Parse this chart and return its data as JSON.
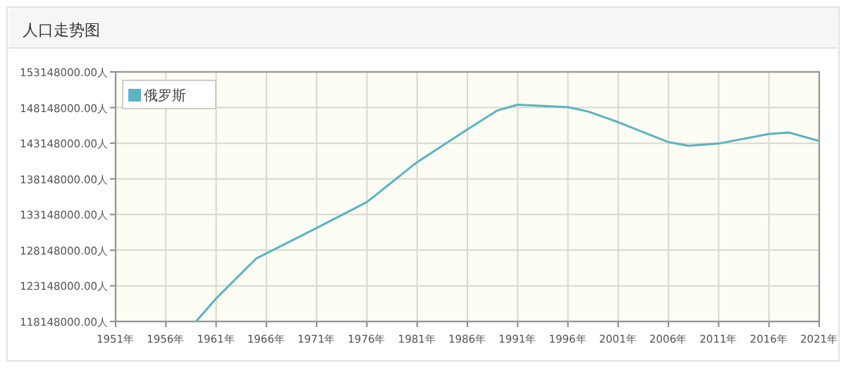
{
  "chart_data": {
    "type": "line",
    "title": "人口走势图",
    "x": [
      1959,
      1961,
      1965,
      1971,
      1976,
      1981,
      1986,
      1989,
      1991,
      1996,
      1998,
      2001,
      2006,
      2008,
      2011,
      2016,
      2018,
      2021
    ],
    "series": [
      {
        "name": "俄罗斯",
        "color": "#5ab4c2",
        "values": [
          118148000,
          121370000,
          126990000,
          131260000,
          134900000,
          140500000,
          145100000,
          147750000,
          148550000,
          148200000,
          147600000,
          146100000,
          143300000,
          142800000,
          143100000,
          144450000,
          144650000,
          143450000
        ]
      }
    ],
    "xlim": [
      1951,
      2021
    ],
    "xticks": [
      {
        "value": 1951,
        "label": "1951年"
      },
      {
        "value": 1956,
        "label": "1956年"
      },
      {
        "value": 1961,
        "label": "1961年"
      },
      {
        "value": 1966,
        "label": "1966年"
      },
      {
        "value": 1971,
        "label": "1971年"
      },
      {
        "value": 1976,
        "label": "1976年"
      },
      {
        "value": 1981,
        "label": "1981年"
      },
      {
        "value": 1986,
        "label": "1986年"
      },
      {
        "value": 1991,
        "label": "1991年"
      },
      {
        "value": 1996,
        "label": "1996年"
      },
      {
        "value": 2001,
        "label": "2001年"
      },
      {
        "value": 2006,
        "label": "2006年"
      },
      {
        "value": 2011,
        "label": "2011年"
      },
      {
        "value": 2016,
        "label": "2016年"
      },
      {
        "value": 2021,
        "label": "2021年"
      }
    ],
    "ylim": [
      118148000,
      153148000
    ],
    "yticks": [
      {
        "value": 118148000,
        "label": "118148000.00人"
      },
      {
        "value": 123148000,
        "label": "123148000.00人"
      },
      {
        "value": 128148000,
        "label": "128148000.00人"
      },
      {
        "value": 133148000,
        "label": "133148000.00人"
      },
      {
        "value": 138148000,
        "label": "138148000.00人"
      },
      {
        "value": 143148000,
        "label": "143148000.00人"
      },
      {
        "value": 148148000,
        "label": "148148000.00人"
      },
      {
        "value": 153148000,
        "label": "153148000.00人"
      }
    ],
    "grid": true,
    "legend": "top left",
    "marker": "none",
    "line_style": "solid"
  }
}
